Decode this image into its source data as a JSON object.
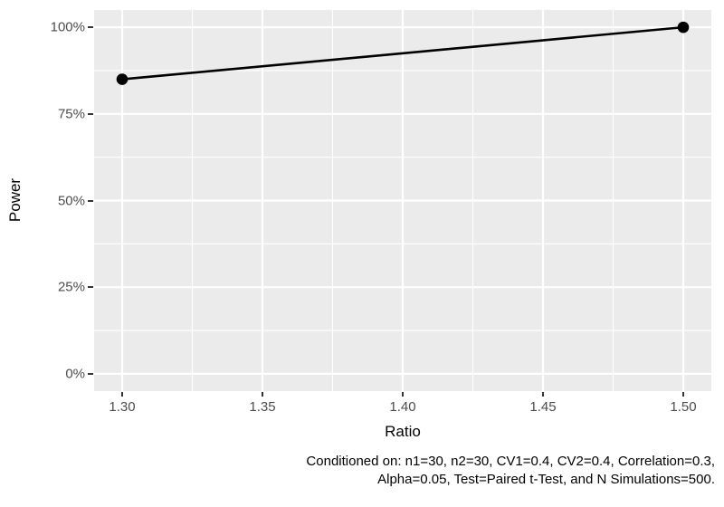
{
  "chart_data": {
    "type": "line",
    "title": "",
    "xlabel": "Ratio",
    "ylabel": "Power",
    "series": [
      {
        "name": "Power",
        "x": [
          1.3,
          1.5
        ],
        "y": [
          85,
          100
        ]
      }
    ],
    "x_ticks": {
      "values": [
        1.3,
        1.35,
        1.4,
        1.45,
        1.5
      ],
      "labels": [
        "1.30",
        "1.35",
        "1.40",
        "1.45",
        "1.50"
      ]
    },
    "y_ticks": {
      "values": [
        0,
        25,
        50,
        75,
        100
      ],
      "labels": [
        "0%",
        "25%",
        "50%",
        "75%",
        "100%"
      ]
    },
    "x_minor": [
      1.325,
      1.375,
      1.425,
      1.475
    ],
    "y_minor": [
      12.5,
      37.5,
      62.5,
      87.5
    ],
    "xlim": [
      1.29,
      1.51
    ],
    "ylim": [
      -5,
      105
    ],
    "grid": "major and minor white gridlines on gray panel",
    "legend": "none",
    "point_marker": "filled black circle"
  },
  "caption": {
    "lines": [
      "Conditioned on: n1=30, n2=30, CV1=0.4, CV2=0.4, Correlation=0.3,",
      "Alpha=0.05, Test=Paired t-Test, and N Simulations=500."
    ]
  },
  "colors": {
    "background": "#FFFFFF",
    "panel_bg": "#EBEBEB",
    "grid": "#FFFFFF",
    "line": "#000000",
    "point": "#000000",
    "tick_label": "#4D4D4D",
    "tick_mark": "#333333",
    "axis_title": "#000000"
  }
}
